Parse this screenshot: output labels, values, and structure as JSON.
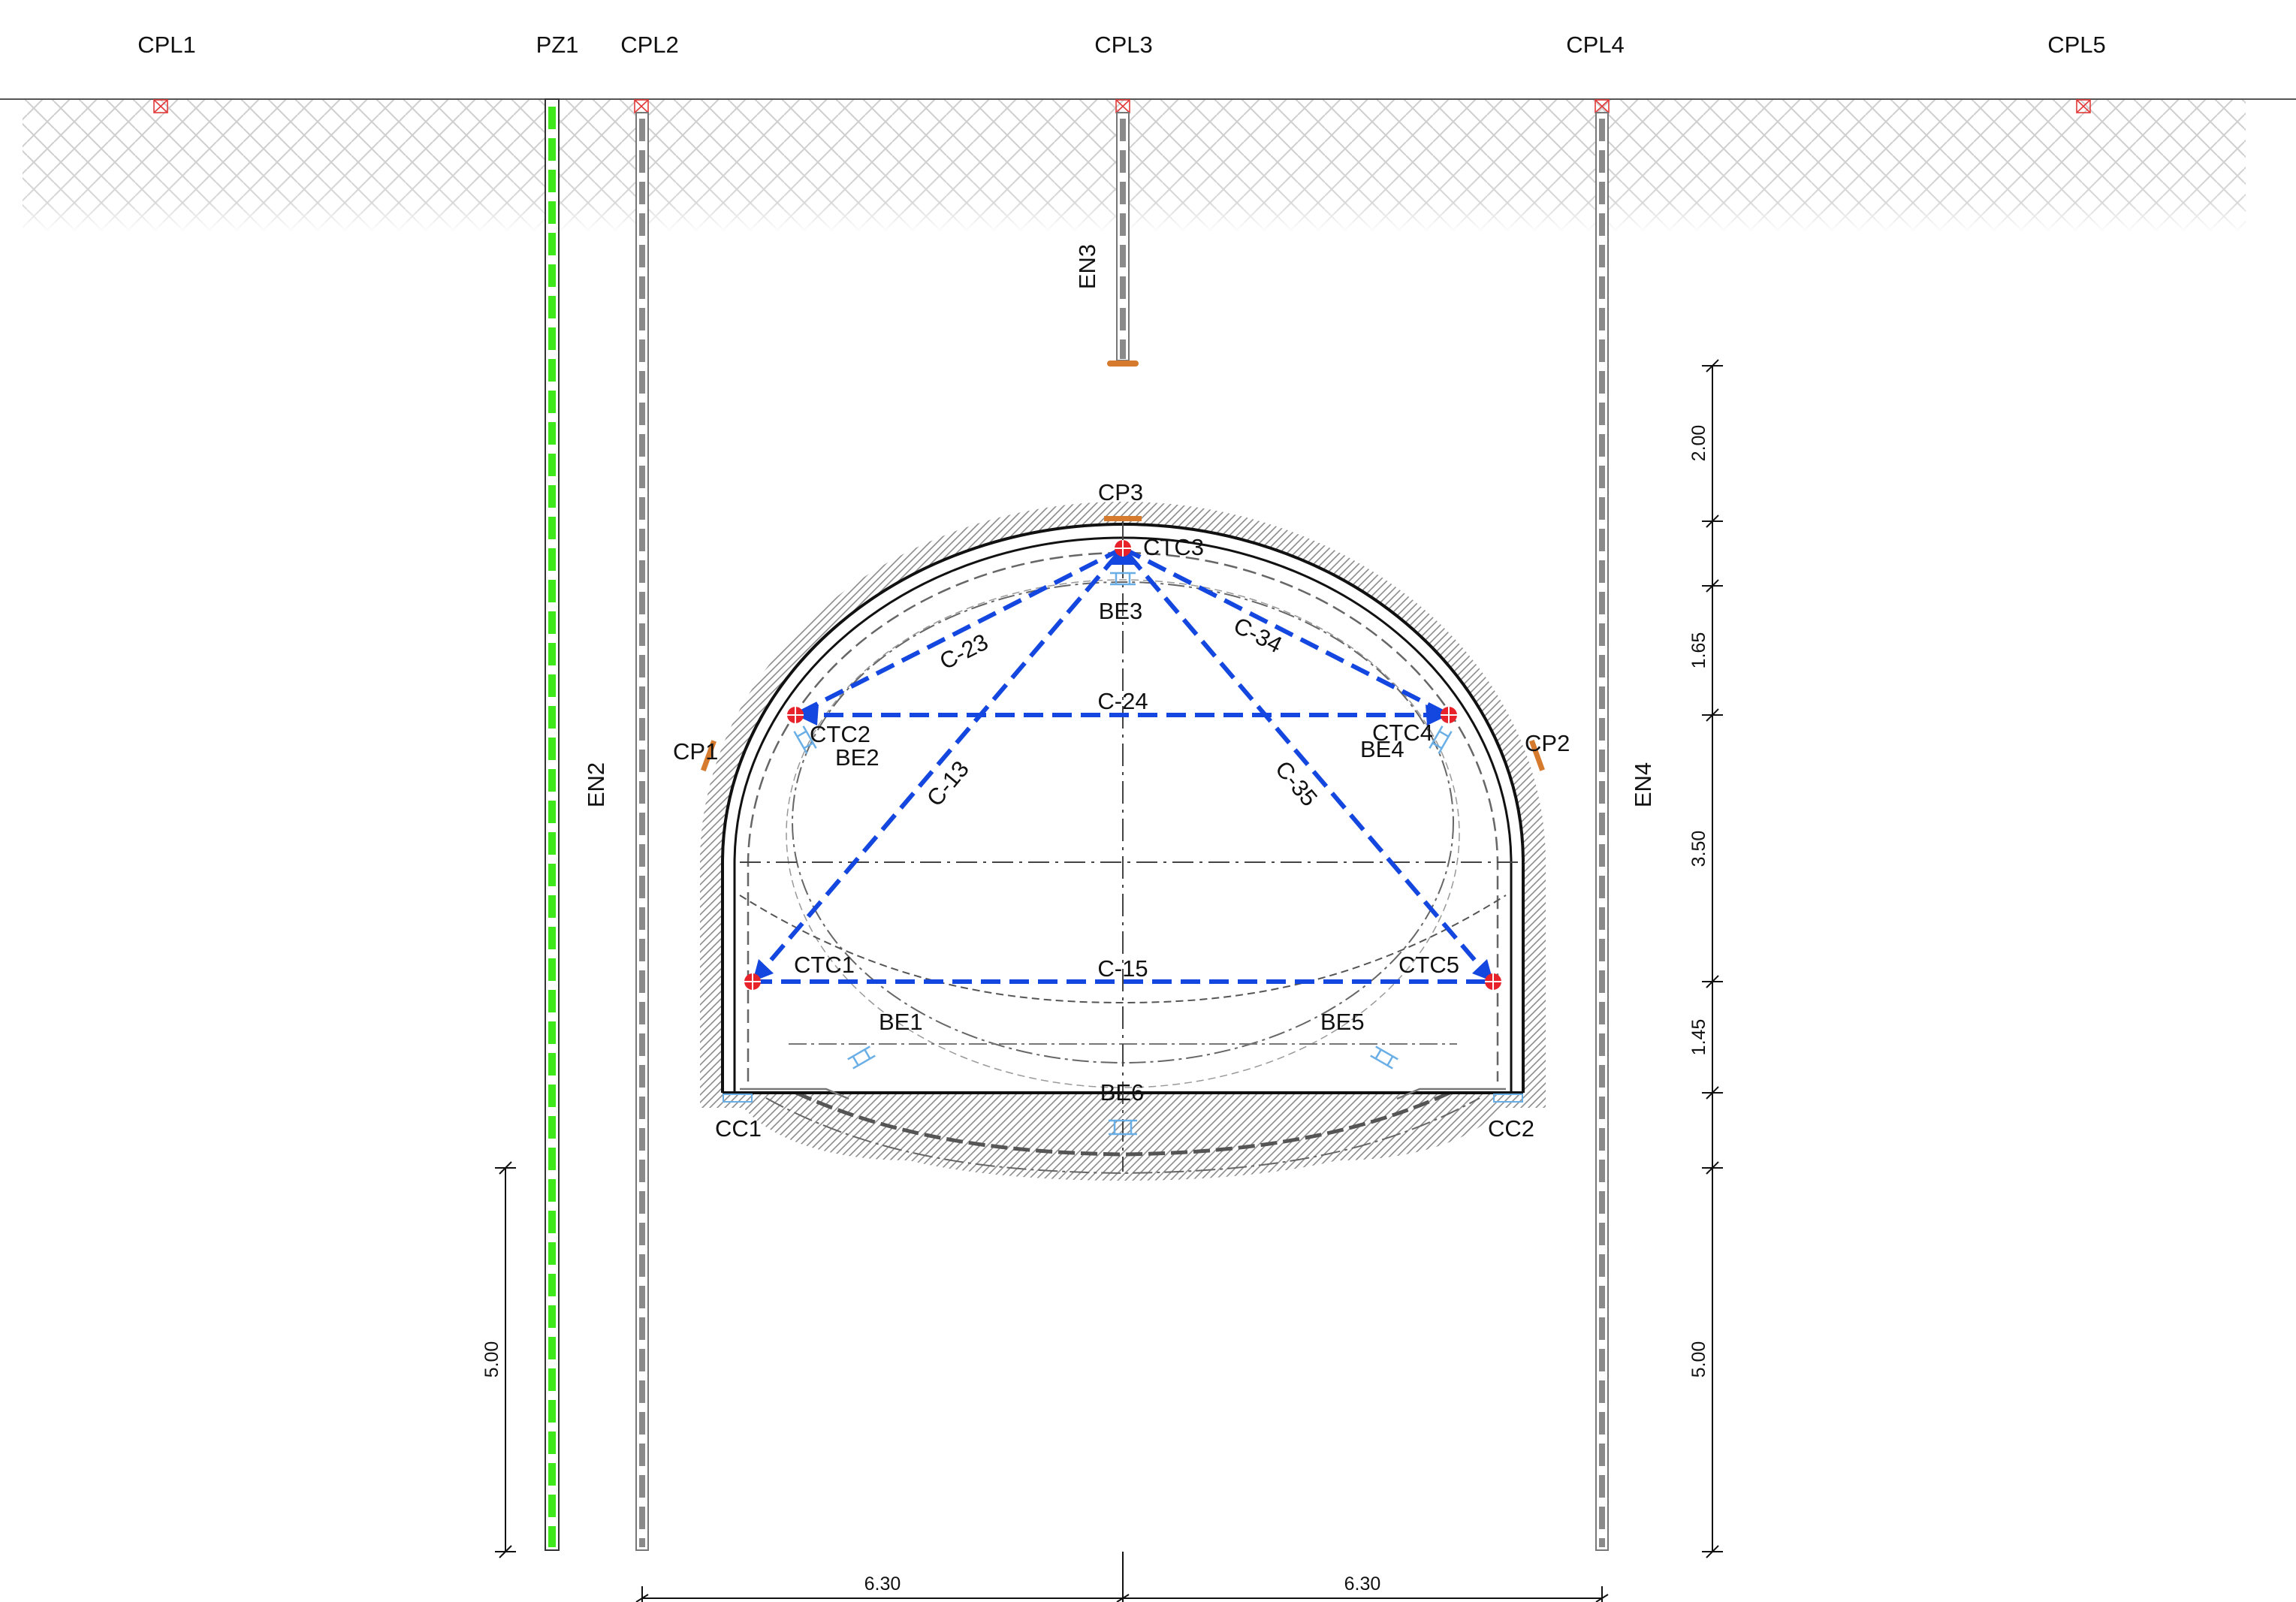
{
  "surface_points": [
    {
      "id": "cpl1",
      "label": "CPL1"
    },
    {
      "id": "pz1",
      "label": "PZ1"
    },
    {
      "id": "cpl2",
      "label": "CPL2"
    },
    {
      "id": "cpl3",
      "label": "CPL3"
    },
    {
      "id": "cpl4",
      "label": "CPL4"
    },
    {
      "id": "cpl5",
      "label": "CPL5"
    }
  ],
  "extensometers": {
    "en2": "EN2",
    "en3": "EN3",
    "en4": "EN4"
  },
  "pressure_cells": {
    "cp1": "CP1",
    "cp2": "CP2",
    "cp3": "CP3",
    "cc1": "CC1",
    "cc2": "CC2"
  },
  "convergence_targets": {
    "ctc1": "CTC1",
    "ctc2": "CTC2",
    "ctc3": "CTC3",
    "ctc4": "CTC4",
    "ctc5": "CTC5"
  },
  "convergence_chords": {
    "c13": "C-13",
    "c15": "C-15",
    "c23": "C-23",
    "c24": "C-24",
    "c34": "C-34",
    "c35": "C-35"
  },
  "strain_gauges": {
    "be1": "BE1",
    "be2": "BE2",
    "be3": "BE3",
    "be4": "BE4",
    "be5": "BE5",
    "be6": "BE6"
  },
  "dimensions": {
    "right_top": "2.00",
    "right_crown": "1.65",
    "right_mid": "3.50",
    "right_low": "1.45",
    "right_bottom": "5.00",
    "left_bottom": "5.00",
    "horizontal_left": "6.30",
    "horizontal_right": "6.30"
  },
  "colors": {
    "chords": "#1446e0",
    "piezometer": "#3ee81a",
    "target": "#e8222a",
    "gauge": "#6aaee6",
    "cell": "#d67a2e",
    "marker": "#e23a3a"
  }
}
